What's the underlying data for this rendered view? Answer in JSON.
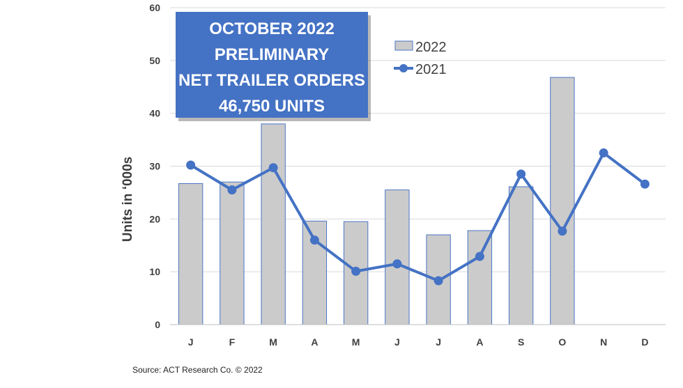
{
  "chart_data": {
    "type": "bar",
    "categories": [
      "J",
      "F",
      "M",
      "A",
      "M",
      "J",
      "J",
      "A",
      "S",
      "O",
      "N",
      "D"
    ],
    "series": [
      {
        "name": "2022",
        "type": "bar",
        "values": [
          26.7,
          27.0,
          38.0,
          19.6,
          19.5,
          25.5,
          17.0,
          17.8,
          26.1,
          46.8,
          null,
          null
        ],
        "color": "#cbcbcb",
        "stroke": "#4a76c6"
      },
      {
        "name": "2021",
        "type": "line",
        "values": [
          30.2,
          25.5,
          29.7,
          16.0,
          10.1,
          11.5,
          8.3,
          12.9,
          28.5,
          17.7,
          32.5,
          26.6
        ],
        "color": "#4472c4"
      }
    ],
    "ylabel": "Units in ‘000s",
    "xlabel": "",
    "ylim": [
      0,
      60
    ],
    "yticks": [
      0,
      10,
      20,
      30,
      40,
      50,
      60
    ],
    "grid": true,
    "legend": "top-center",
    "annotation": {
      "lines": [
        "OCTOBER 2022",
        "PRELIMINARY",
        "NET TRAILER ORDERS",
        "46,750  UNITS"
      ],
      "background": "#4472c4",
      "text_color": "#ffffff"
    }
  },
  "source": "Source: ACT Research Co.  © 2022"
}
